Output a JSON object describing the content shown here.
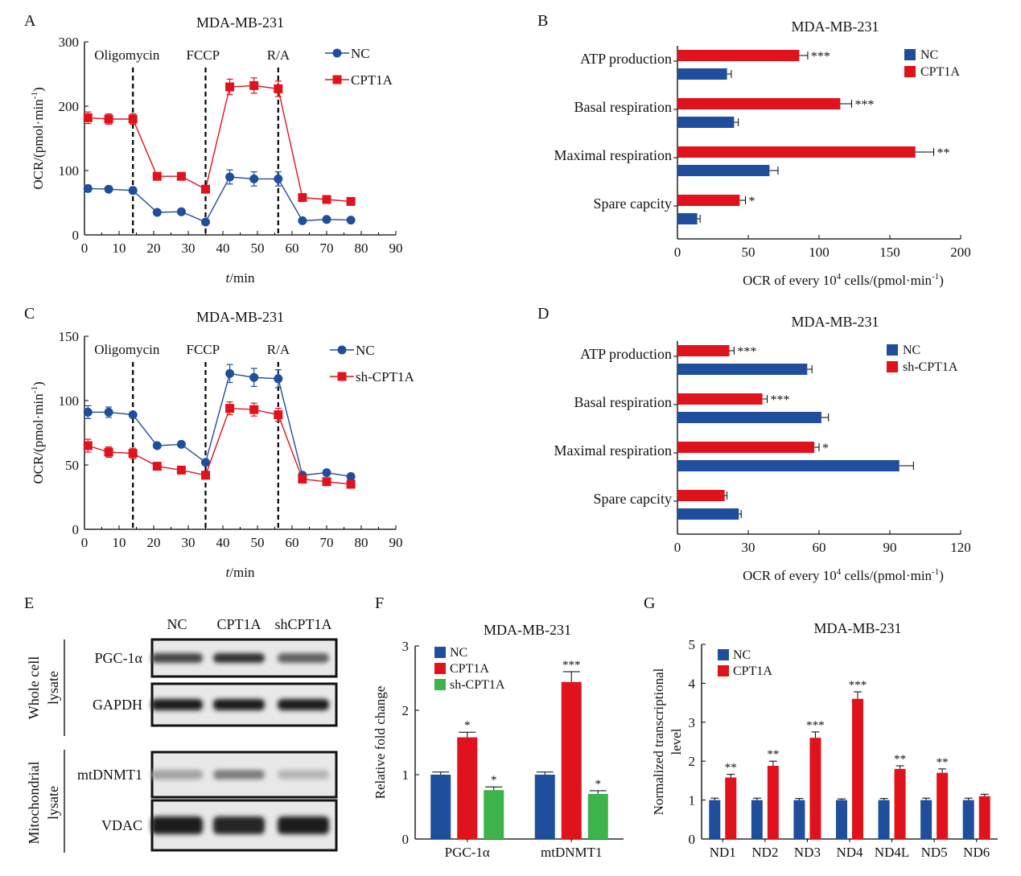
{
  "colors": {
    "nc": "#1f4e9c",
    "treat": "#e0131c",
    "sh": "#3cb44b"
  },
  "chart_data": [
    {
      "panel": "A",
      "type": "line",
      "title": "MDA-MB-231",
      "xlabel_italic": "t",
      "xlabel_rest": "/min",
      "ylabel": "OCR/(pmol·min",
      "ylabel_sup": "-1",
      "ylabel_close": ")",
      "xlim": [
        0,
        90
      ],
      "ylim": [
        0,
        300
      ],
      "xticks": [
        0,
        10,
        20,
        30,
        40,
        50,
        60,
        70,
        80,
        90
      ],
      "yticks": [
        0,
        100,
        200,
        300
      ],
      "markers": [
        {
          "x": 14,
          "label": "Oligomycin"
        },
        {
          "x": 35,
          "label": "FCCP"
        },
        {
          "x": 56,
          "label": "R/A"
        }
      ],
      "series": [
        {
          "name": "NC",
          "shape": "circle",
          "color_key": "nc",
          "x": [
            1,
            7,
            14,
            21,
            28,
            35,
            42,
            49,
            56,
            63,
            70,
            77
          ],
          "y": [
            72,
            71,
            69,
            35,
            36,
            20,
            90,
            87,
            87,
            22,
            24,
            23
          ],
          "err": [
            5,
            4,
            5,
            2,
            2,
            2,
            11,
            11,
            11,
            2,
            2,
            2
          ]
        },
        {
          "name": "CPT1A",
          "shape": "square",
          "color_key": "treat",
          "x": [
            1,
            7,
            14,
            21,
            28,
            35,
            42,
            49,
            56,
            63,
            70,
            77
          ],
          "y": [
            182,
            180,
            180,
            91,
            91,
            71,
            230,
            232,
            227,
            58,
            55,
            52
          ],
          "err": [
            9,
            8,
            8,
            3,
            3,
            5,
            12,
            12,
            12,
            3,
            3,
            3
          ]
        }
      ]
    },
    {
      "panel": "B",
      "type": "hbar",
      "title": "MDA-MB-231",
      "xlabel": "OCR of every 10",
      "xlabel_sup1": "4",
      "xlabel_mid": " cells/(pmol·min",
      "xlabel_sup2": "-1",
      "xlabel_close": ")",
      "xlim": [
        0,
        200
      ],
      "xticks": [
        0,
        50,
        100,
        150,
        200
      ],
      "categories": [
        "ATP production",
        "Basal respiration",
        "Maximal respiration",
        "Spare capcity"
      ],
      "series": [
        {
          "name": "NC",
          "color_key": "nc",
          "values": [
            35,
            40,
            65,
            14
          ],
          "err": [
            3,
            3,
            6,
            2
          ]
        },
        {
          "name": "CPT1A",
          "color_key": "treat",
          "values": [
            86,
            115,
            168,
            44
          ],
          "err": [
            6,
            8,
            13,
            4
          ],
          "sig": [
            "***",
            "***",
            "**",
            "*"
          ]
        }
      ]
    },
    {
      "panel": "C",
      "type": "line",
      "title": "MDA-MB-231",
      "xlabel_italic": "t",
      "xlabel_rest": "/min",
      "ylabel": "OCR/(pmol·min",
      "ylabel_sup": "-1",
      "ylabel_close": ")",
      "xlim": [
        0,
        90
      ],
      "ylim": [
        0,
        150
      ],
      "xticks": [
        0,
        10,
        20,
        30,
        40,
        50,
        60,
        70,
        80,
        90
      ],
      "yticks": [
        0,
        50,
        100,
        150
      ],
      "markers": [
        {
          "x": 14,
          "label": "Oligomycin"
        },
        {
          "x": 35,
          "label": "FCCP"
        },
        {
          "x": 56,
          "label": "R/A"
        }
      ],
      "series": [
        {
          "name": "NC",
          "shape": "circle",
          "color_key": "nc",
          "x": [
            1,
            7,
            14,
            21,
            28,
            35,
            42,
            49,
            56,
            63,
            70,
            77
          ],
          "y": [
            91,
            91,
            89,
            65,
            66,
            52,
            121,
            118,
            117,
            42,
            44,
            41
          ],
          "err": [
            5,
            4,
            2,
            1,
            1,
            2,
            7,
            7,
            7,
            2,
            2,
            2
          ]
        },
        {
          "name": "sh-CPT1A",
          "shape": "square",
          "color_key": "treat",
          "x": [
            1,
            7,
            14,
            21,
            28,
            35,
            42,
            49,
            56,
            63,
            70,
            77
          ],
          "y": [
            65,
            60,
            59,
            49,
            46,
            42,
            94,
            93,
            89,
            39,
            37,
            35
          ],
          "err": [
            5,
            4,
            4,
            2,
            2,
            3,
            5,
            5,
            5,
            2,
            2,
            2
          ]
        }
      ]
    },
    {
      "panel": "D",
      "type": "hbar",
      "title": "MDA-MB-231",
      "xlabel": "OCR of every 10",
      "xlabel_sup1": "4",
      "xlabel_mid": " cells/(pmol·min",
      "xlabel_sup2": "-1",
      "xlabel_close": ")",
      "xlim": [
        0,
        120
      ],
      "xticks": [
        0,
        30,
        60,
        90,
        120
      ],
      "categories": [
        "ATP production",
        "Basal respiration",
        "Maximal respiration",
        "Spare capcity"
      ],
      "series": [
        {
          "name": "NC",
          "color_key": "nc",
          "values": [
            55,
            61,
            94,
            26
          ],
          "err": [
            2,
            3,
            6,
            1
          ]
        },
        {
          "name": "sh-CPT1A",
          "color_key": "treat",
          "values": [
            22,
            36,
            58,
            20
          ],
          "err": [
            2,
            2,
            2,
            1
          ],
          "sig": [
            "***",
            "***",
            "*",
            ""
          ]
        }
      ]
    },
    {
      "panel": "F",
      "type": "bar",
      "title": "MDA-MB-231",
      "ylabel": "Relative fold change",
      "ylim": [
        0,
        3
      ],
      "yticks": [
        0,
        1,
        2,
        3
      ],
      "categories": [
        "PGC-1α",
        "mtDNMT1"
      ],
      "series": [
        {
          "name": "NC",
          "color_key": "nc",
          "values": [
            1.0,
            1.0
          ],
          "err": [
            0.04,
            0.04
          ],
          "sig": [
            "",
            ""
          ]
        },
        {
          "name": "CPT1A",
          "color_key": "treat",
          "values": [
            1.58,
            2.44
          ],
          "err": [
            0.08,
            0.16
          ],
          "sig": [
            "*",
            "***"
          ]
        },
        {
          "name": "sh-CPT1A",
          "color_key": "sh",
          "values": [
            0.76,
            0.7
          ],
          "err": [
            0.05,
            0.05
          ],
          "sig": [
            "*",
            "*"
          ]
        }
      ]
    },
    {
      "panel": "G",
      "type": "bar",
      "title": "MDA-MB-231",
      "ylabel": "Normalized transcriptional level",
      "ylim": [
        0,
        5
      ],
      "yticks": [
        0,
        1,
        2,
        3,
        4,
        5
      ],
      "categories": [
        "ND1",
        "ND2",
        "ND3",
        "ND4",
        "ND4L",
        "ND5",
        "ND6"
      ],
      "series": [
        {
          "name": "NC",
          "color_key": "nc",
          "values": [
            1,
            1,
            1,
            1,
            1,
            1,
            1
          ],
          "err": [
            0.05,
            0.05,
            0.04,
            0.03,
            0.04,
            0.05,
            0.05
          ],
          "sig": [
            "",
            "",
            "",
            "",
            "",
            "",
            ""
          ]
        },
        {
          "name": "CPT1A",
          "color_key": "treat",
          "values": [
            1.58,
            1.88,
            2.6,
            3.6,
            1.8,
            1.7,
            1.1
          ],
          "err": [
            0.08,
            0.12,
            0.15,
            0.18,
            0.08,
            0.1,
            0.05
          ],
          "sig": [
            "**",
            "**",
            "***",
            "***",
            "**",
            "**",
            ""
          ]
        }
      ]
    }
  ],
  "blot": {
    "panel": "E",
    "lanes": [
      "NC",
      "CPT1A",
      "shCPT1A"
    ],
    "group1": "Whole cell lysate",
    "group1_lines": [
      "Whole cell",
      "lysate"
    ],
    "group2": "Mitochondrial lysate",
    "group2_lines": [
      "Mitochondrial",
      "lysate"
    ],
    "rows": [
      {
        "label": "PGC-1α",
        "intensity": [
          0.75,
          0.85,
          0.6
        ]
      },
      {
        "label": "GAPDH",
        "intensity": [
          0.95,
          0.95,
          0.95
        ]
      },
      {
        "label": "mtDNMT1",
        "intensity": [
          0.25,
          0.45,
          0.15
        ]
      },
      {
        "label": "VDAC",
        "intensity": [
          0.95,
          0.9,
          0.95
        ]
      }
    ]
  }
}
